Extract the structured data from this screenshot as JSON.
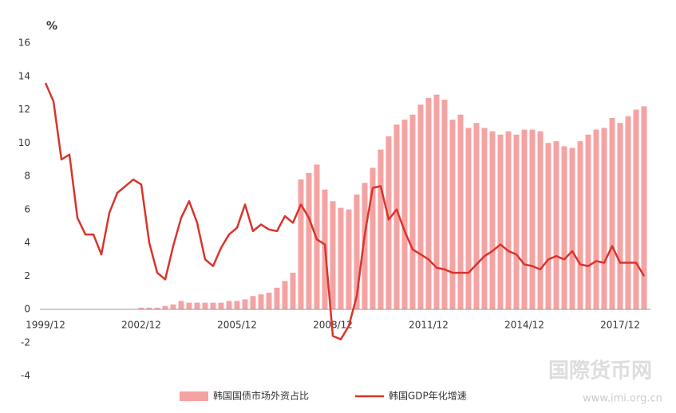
{
  "chart_data": {
    "type": "bar-line",
    "y_unit": "%",
    "categories": [
      "1999/12",
      null,
      null,
      null,
      null,
      null,
      null,
      null,
      null,
      null,
      null,
      null,
      "2002/12",
      null,
      null,
      null,
      null,
      null,
      null,
      null,
      null,
      null,
      null,
      null,
      "2005/12",
      null,
      null,
      null,
      null,
      null,
      null,
      null,
      null,
      null,
      null,
      null,
      "2008/12",
      null,
      null,
      null,
      null,
      null,
      null,
      null,
      null,
      null,
      null,
      null,
      "2011/12",
      null,
      null,
      null,
      null,
      null,
      null,
      null,
      null,
      null,
      null,
      null,
      "2014/12",
      null,
      null,
      null,
      null,
      null,
      null,
      null,
      null,
      null,
      null,
      null,
      "2017/12",
      null,
      null,
      null
    ],
    "series": [
      {
        "name": "韩国国债市场外资占比",
        "kind": "bar",
        "color": "#f4a3a3",
        "values": [
          null,
          null,
          null,
          null,
          null,
          null,
          null,
          null,
          null,
          null,
          null,
          null,
          0.1,
          0.1,
          0.1,
          0.2,
          0.3,
          0.5,
          0.4,
          0.4,
          0.4,
          0.4,
          0.4,
          0.5,
          0.5,
          0.6,
          0.8,
          0.9,
          1.0,
          1.3,
          1.7,
          2.2,
          7.8,
          8.2,
          8.7,
          7.2,
          6.5,
          6.1,
          6.0,
          6.9,
          7.6,
          8.5,
          9.6,
          10.4,
          11.1,
          11.4,
          11.7,
          12.3,
          12.7,
          12.9,
          12.6,
          11.4,
          11.7,
          10.9,
          11.2,
          10.9,
          10.7,
          10.5,
          10.7,
          10.5,
          10.8,
          10.8,
          10.7,
          10.0,
          10.1,
          9.8,
          9.7,
          10.1,
          10.5,
          10.8,
          10.9,
          11.5,
          11.2,
          11.6,
          12.0,
          12.2
        ]
      },
      {
        "name": "韩国GDP年化增速",
        "kind": "line",
        "color": "#d9342b",
        "values": [
          13.6,
          12.5,
          9.0,
          9.3,
          5.5,
          4.5,
          4.5,
          3.3,
          5.8,
          7.0,
          7.4,
          7.8,
          7.5,
          4.0,
          2.2,
          1.8,
          3.8,
          5.5,
          6.5,
          5.2,
          3.0,
          2.6,
          3.7,
          4.5,
          4.9,
          6.3,
          4.7,
          5.1,
          4.8,
          4.7,
          5.6,
          5.2,
          6.3,
          5.5,
          4.2,
          3.9,
          -1.6,
          -1.8,
          -1.0,
          0.8,
          4.5,
          7.3,
          7.4,
          5.4,
          6.0,
          4.7,
          3.6,
          3.3,
          3.0,
          2.5,
          2.4,
          2.2,
          2.2,
          2.2,
          2.7,
          3.2,
          3.5,
          3.9,
          3.5,
          3.3,
          2.7,
          2.6,
          2.4,
          3.0,
          3.2,
          3.0,
          3.5,
          2.7,
          2.6,
          2.9,
          2.8,
          3.8,
          2.8,
          2.8,
          2.8,
          2.0
        ]
      }
    ],
    "ylim": [
      -4,
      16
    ],
    "yticks": [
      -4,
      -2,
      0,
      2,
      4,
      6,
      8,
      10,
      12,
      14,
      16
    ],
    "grid": false,
    "legend": "bottom"
  },
  "watermark": {
    "title": "国際货币网",
    "url": "www.imi.org.cn"
  }
}
